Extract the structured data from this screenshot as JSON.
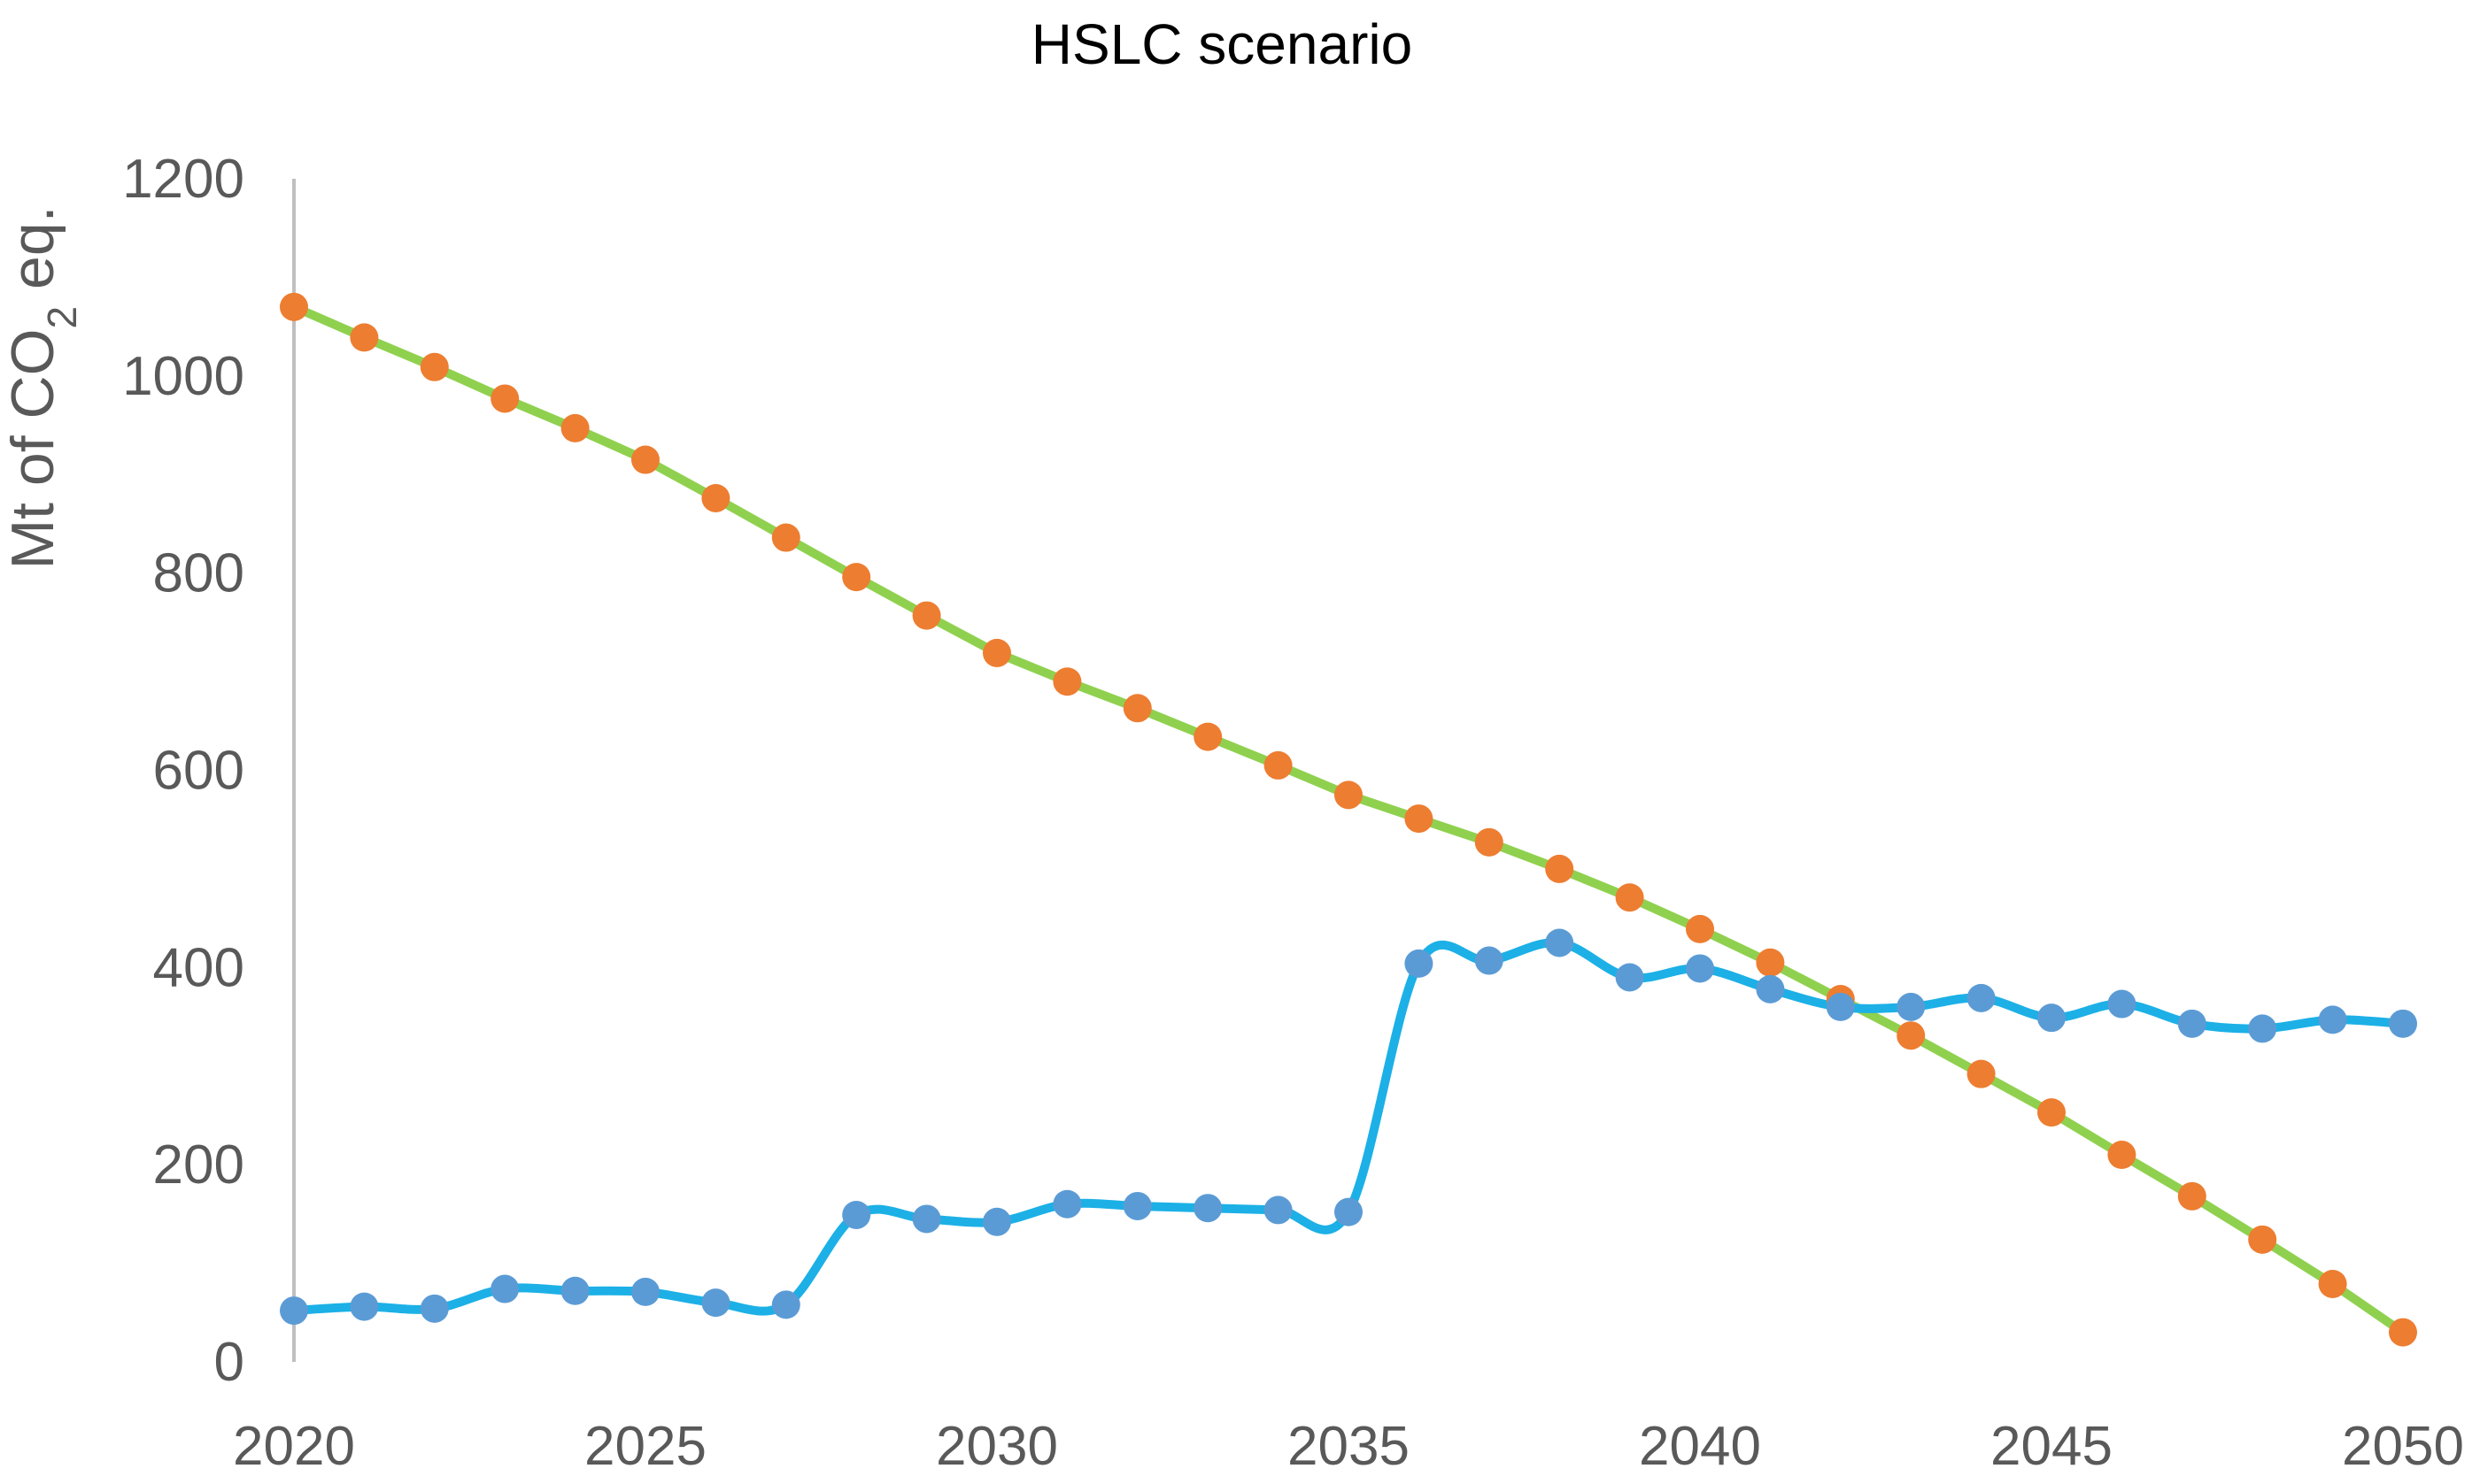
{
  "chart_data": {
    "type": "line",
    "title": "HSLC scenario",
    "xlabel": "",
    "ylabel": {
      "prefix": "Mt of CO",
      "subscript": "2",
      "suffix": " eq."
    },
    "xlim": [
      2020,
      2050
    ],
    "ylim": [
      0,
      1200
    ],
    "x_ticks": [
      "2020",
      "2025",
      "2030",
      "2035",
      "2040",
      "2045",
      "2050"
    ],
    "y_ticks": [
      "0",
      "200",
      "400",
      "600",
      "800",
      "1000",
      "1200"
    ],
    "grid": false,
    "legend": "none",
    "x": [
      2020,
      2021,
      2022,
      2023,
      2024,
      2025,
      2026,
      2027,
      2028,
      2029,
      2030,
      2031,
      2032,
      2033,
      2034,
      2035,
      2036,
      2037,
      2038,
      2039,
      2040,
      2041,
      2042,
      2043,
      2044,
      2045,
      2046,
      2047,
      2048,
      2049,
      2050
    ],
    "series": [
      {
        "color": "#1cb0e6",
        "marker_color": "#5b9bd5",
        "smooth": true,
        "values": [
          52,
          56,
          54,
          74,
          72,
          71,
          60,
          58,
          149,
          145,
          142,
          160,
          158,
          156,
          154,
          152,
          404,
          407,
          425,
          390,
          399,
          378,
          360,
          360,
          369,
          349,
          363,
          343,
          338,
          347,
          343
        ]
      },
      {
        "color": "#8fd14f",
        "marker_color": "#ed7d31",
        "smooth": false,
        "values": [
          1070,
          1039,
          1009,
          977,
          947,
          915,
          876,
          836,
          796,
          757,
          719,
          690,
          663,
          634,
          605,
          575,
          551,
          527,
          500,
          471,
          439,
          405,
          368,
          331,
          292,
          253,
          210,
          168,
          124,
          79,
          30
        ]
      }
    ]
  }
}
